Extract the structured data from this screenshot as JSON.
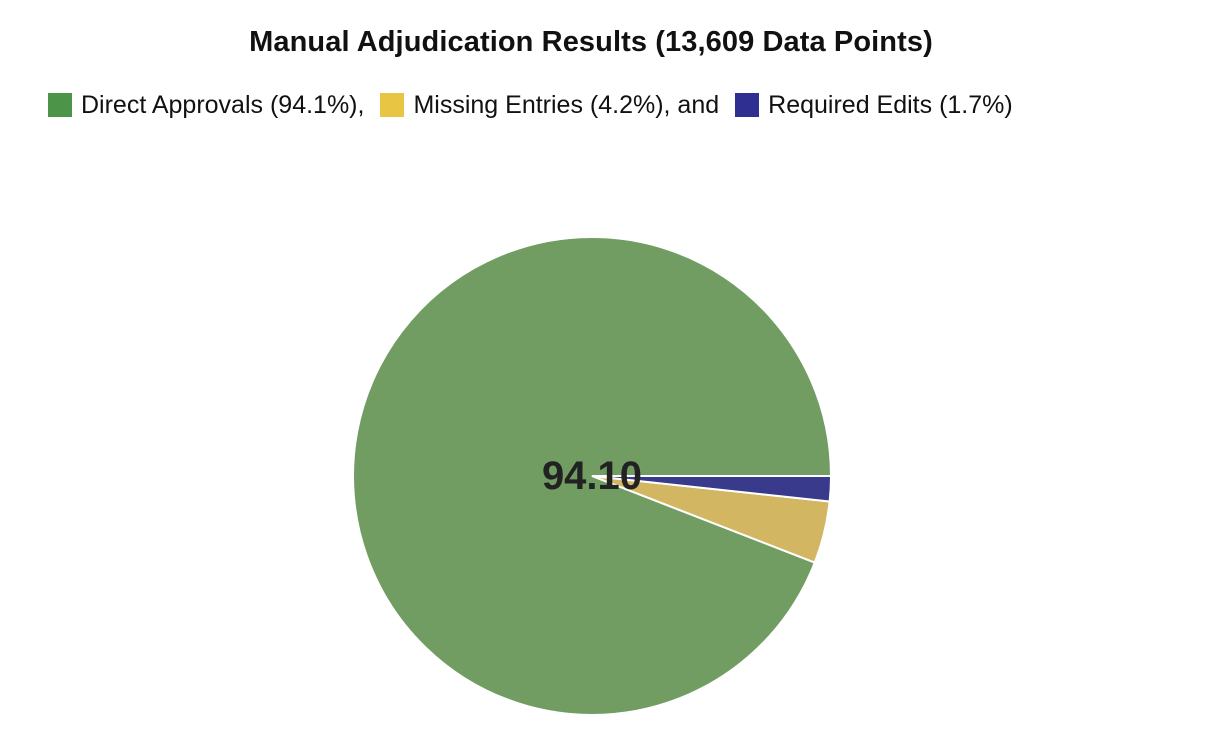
{
  "chart_data": {
    "type": "pie",
    "title": "Manual Adjudication Results (13,609 Data Points)",
    "slices": [
      {
        "label": "Direct Approvals (94.1%),",
        "value": 94.1,
        "color": "#729d62",
        "legend_color": "#4c9448"
      },
      {
        "label": "Missing Entries (4.2%), and",
        "value": 4.2,
        "color": "#d2b662",
        "legend_color": "#e8c543"
      },
      {
        "label": "Required Edits (1.7%)",
        "value": 1.7,
        "color": "#3a3a8c",
        "legend_color": "#2f2f92"
      }
    ],
    "center_label": "94.10",
    "legend_position": "top"
  }
}
